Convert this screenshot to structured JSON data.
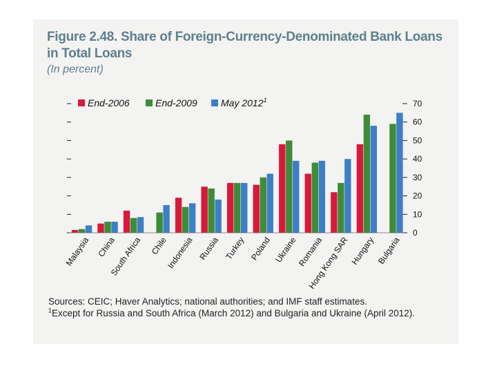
{
  "figure": {
    "title": "Figure 2.48. Share of Foreign-Currency-Denominated Bank Loans in Total Loans",
    "subtitle": "(In percent)"
  },
  "sources": {
    "text": "Sources: CEIC; Haver Analytics; national authorities; and IMF staff estimates.",
    "note_marker": "1",
    "note": "Except for Russia and South Africa (March 2012) and Bulgaria and Ukraine (April 2012)."
  },
  "colors": {
    "end_2006": "#d7193a",
    "end_2009": "#3e8c37",
    "may_2012": "#3d7fc6"
  },
  "chart_data": {
    "type": "bar",
    "title": "Share of Foreign-Currency-Denominated Bank Loans in Total Loans",
    "ylabel": "In percent",
    "ylim": [
      0,
      70
    ],
    "yticks": [
      0,
      10,
      20,
      30,
      40,
      50,
      60,
      70
    ],
    "legend_position": "top",
    "categories": [
      "Malaysia",
      "China",
      "South Africa",
      "Chile",
      "Indonesia",
      "Russia",
      "Turkey",
      "Poland",
      "Ukraine",
      "Romania",
      "Hong Kong SAR",
      "Hungary",
      "Bulgaria"
    ],
    "series": [
      {
        "name": "End-2006",
        "values": [
          1.5,
          5,
          12,
          null,
          19,
          25,
          27,
          26,
          48,
          32,
          22,
          48,
          null
        ]
      },
      {
        "name": "End-2009",
        "values": [
          2,
          6,
          8,
          11,
          14,
          24,
          27,
          30,
          50,
          38,
          27,
          64,
          59
        ]
      },
      {
        "name": "May 2012",
        "name_superscript": "1",
        "values": [
          4,
          6,
          8.5,
          15,
          16,
          18,
          27,
          32,
          39,
          39,
          40,
          58,
          65
        ]
      }
    ]
  }
}
